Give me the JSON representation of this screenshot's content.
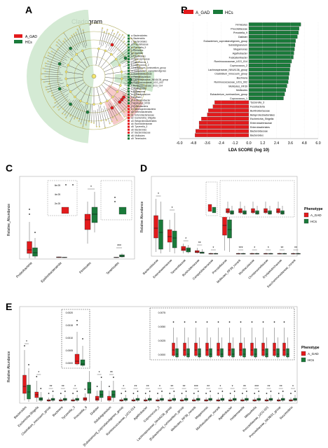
{
  "colors": {
    "a_gad": "#e31a1c",
    "hcs": "#1a7a3a",
    "hcs_bg": "#cfe8cf",
    "a_gad_bg": "#f6c9c9"
  },
  "panels": {
    "a": "A",
    "b": "B",
    "c": "C",
    "d": "D",
    "e": "E"
  },
  "cladogram": {
    "title": "Cladogram",
    "legend": [
      {
        "name": "A_GAD",
        "color": "#e31a1c"
      },
      {
        "name": "HCs",
        "color": "#1a7a3a"
      }
    ],
    "key_items": [
      {
        "label": "a: Bacteroidetes",
        "color": "#1a7a3a"
      },
      {
        "label": "b: Bacteroidia",
        "color": "#1a7a3a"
      },
      {
        "label": "c: Bacteroidales",
        "color": "#1a7a3a"
      },
      {
        "label": "d: Prevotellaceae",
        "color": "#1a7a3a"
      },
      {
        "label": "e: Prevotella_9",
        "color": "#1a7a3a"
      },
      {
        "label": "f: Firmicutes",
        "color": "#1a7a3a"
      },
      {
        "label": "g: Clostridia",
        "color": "#1a7a3a"
      },
      {
        "label": "h: Clostridiales",
        "color": "#1a7a3a"
      },
      {
        "label": "i: Lachnospiraceae",
        "color": "#1a7a3a"
      },
      {
        "label": "j: Coprococcus_1",
        "color": "#1a7a3a"
      },
      {
        "label": "k: Coprococcus_2",
        "color": "#1a7a3a"
      },
      {
        "label": "l: Eubacterium_ruminantium_group",
        "color": "#1a7a3a"
      },
      {
        "label": "m: Eubacterium_coprostanoligenes",
        "color": "#1a7a3a"
      },
      {
        "label": "n: Ruminococcaceae",
        "color": "#1a7a3a"
      },
      {
        "label": "o: Faecalibacterium",
        "color": "#1a7a3a"
      },
      {
        "label": "p: Lachnospiraceae_NK4A136_group",
        "color": "#1a7a3a"
      },
      {
        "label": "q: Ruminococcaceae_UCG_002",
        "color": "#1a7a3a"
      },
      {
        "label": "r: Ruminococcaceae_UCG_014",
        "color": "#1a7a3a"
      },
      {
        "label": "s: Agathobacter",
        "color": "#1a7a3a"
      },
      {
        "label": "t: Megamonas",
        "color": "#1a7a3a"
      },
      {
        "label": "u: Subdoligranulum",
        "color": "#1a7a3a"
      },
      {
        "label": "v: Dialister",
        "color": "#1a7a3a"
      },
      {
        "label": "w: Fusicatenibacter",
        "color": "#1a7a3a"
      },
      {
        "label": "x: Mollicutes_RF39",
        "color": "#1a7a3a"
      },
      {
        "label": "y: Proteobacteria",
        "color": "#e31a1c"
      },
      {
        "label": "z: Gammaproteobacteria",
        "color": "#e31a1c"
      },
      {
        "label": "a0: Enterobacteriales",
        "color": "#e31a1c"
      },
      {
        "label": "a1: Enterobacteriaceae",
        "color": "#e31a1c"
      },
      {
        "label": "a2: Escherichia_Shigella",
        "color": "#e31a1c"
      },
      {
        "label": "a3: Betaproteobacteriales",
        "color": "#e31a1c"
      },
      {
        "label": "a4: Burkholderiaceae",
        "color": "#e31a1c"
      },
      {
        "label": "a5: Tyzzerella_3",
        "color": "#e31a1c"
      },
      {
        "label": "a6: Bacteroides",
        "color": "#e31a1c"
      },
      {
        "label": "a7: Bacteroidaceae",
        "color": "#e31a1c"
      },
      {
        "label": "a8: Mollicutes",
        "color": "#1a7a3a"
      },
      {
        "label": "a9: Tenericutes",
        "color": "#1a7a3a"
      }
    ]
  },
  "chart_data": [
    {
      "type": "bar",
      "panel": "B",
      "xlabel": "LDA SCORE (log 10)",
      "xlim": [
        -6.0,
        6.0
      ],
      "xticks": [
        "-6.0",
        "-4.8",
        "-3.6",
        "-2.4",
        "-1.2",
        "0.0",
        "1.2",
        "2.4",
        "3.6",
        "4.8",
        "6.0"
      ],
      "legend": [
        {
          "name": "A_GAD",
          "color": "#e31a1c"
        },
        {
          "name": "HCs",
          "color": "#1a7a3a"
        }
      ],
      "categories": [
        "Firmicutes",
        "Prevotellaceae",
        "Prevotella_9",
        "Dialister",
        "Eubacterium_coprostanoligenes_group",
        "Subdoligranulum",
        "Megamonas",
        "Agathobacter",
        "Fusicatenibacter",
        "Ruminococcaceae_UCG_014",
        "Coprococcus_2",
        "Lachnospiraceae_NK4A136_group",
        "Clostridium_innocuum_group",
        "Buchnera",
        "Ruminococcaceae_UCG_002",
        "Mollicutes_RF39",
        "Mollicutes",
        "Eubacterium_ruminantium_group",
        "Coprococcus_1",
        "Tyzzerella_3",
        "Fusobacteria",
        "Burkholderiaceae",
        "Betaproteobacteriales",
        "Escherichia_Shigella",
        "Enterobacteriaceae",
        "Enterobacteriales",
        "Bacteroidaceae",
        "Bacteroides"
      ],
      "values": [
        4.5,
        4.35,
        4.3,
        4.2,
        4.05,
        4.0,
        3.95,
        3.9,
        3.85,
        3.7,
        3.6,
        3.55,
        3.5,
        3.45,
        3.4,
        3.3,
        3.2,
        3.1,
        3.0,
        -2.95,
        -3.1,
        -3.5,
        -3.6,
        -4.1,
        -4.3,
        -4.3,
        -4.6,
        -4.65
      ]
    },
    {
      "type": "box",
      "panel": "C",
      "ylabel": "Relative_Abundance",
      "categories": [
        "Proteobacteria",
        "Epsilonbacteraeota",
        "Firmicutes",
        "Tenericutes"
      ],
      "significance": [
        "",
        "",
        "*",
        "***"
      ],
      "series": [
        {
          "name": "A_GAD",
          "color": "#e31a1c"
        },
        {
          "name": "HCs",
          "color": "#1a7a3a"
        }
      ],
      "inset_labels": [
        "6e-05",
        "4e-05",
        "2e-05"
      ]
    },
    {
      "type": "box",
      "panel": "D",
      "ylabel": "Relative Abundance",
      "legend_title": "Phenotype",
      "legend": [
        {
          "name": "A_GAD",
          "color": "#e31a1c"
        },
        {
          "name": "HCs",
          "color": "#1a7a3a"
        }
      ],
      "categories": [
        "Bacteroidaceae",
        "Enterobacteriaceae",
        "Tannerellaceae",
        "Burkholderiaceae",
        "Campylobacteraceae",
        "Prevotellaceae",
        "Mollicutes_RF39_norank",
        "Muribaculaceae",
        "Christensenellaceae",
        "Erysipelotrichaceae",
        "Saccharimonadaceae_norank"
      ],
      "significance": [
        "*",
        "*",
        "*",
        "**",
        "*",
        "**",
        "***",
        "*",
        "*",
        "**",
        "**"
      ]
    },
    {
      "type": "box",
      "panel": "E",
      "ylabel": "Relative Abundance",
      "legend_title": "Phenotype",
      "legend": [
        {
          "name": "A_GAD",
          "color": "#e31a1c"
        },
        {
          "name": "HCs",
          "color": "#1a7a3a"
        }
      ],
      "categories": [
        "Bacteroides",
        "Escherichia-Shigella",
        "Clostridium_innocuum_group",
        "Buchnera",
        "Tyzzerella_3",
        "Prevotella_9",
        "Dialister",
        "Subdoligranulum",
        "[Eubacterium]_coprostanoligenes_group",
        "Ruminococcaceae_UCG-014",
        "Agathobacter",
        "Coprococcus_2",
        "Lachnospiraceae_NK4A136_group",
        "[Eubacterium]_ruminantium_group",
        "Mollicutes_RF39_norank",
        "Megamonas",
        "Muribaculaceae_norank",
        "Agathobacter",
        "Holdemanella",
        "Mitsuokella",
        "Prevotellaceae_UCG-001",
        "Prevotellaceae_NK3B31_group",
        "Succinivibrio"
      ],
      "significance": [
        "*",
        "*",
        "**",
        "**",
        "*",
        "***",
        "*",
        "**",
        "*",
        "**",
        "**",
        "*",
        "**",
        "**",
        "***",
        "**",
        "*",
        "*",
        "**",
        "***",
        "**",
        "**",
        "*"
      ],
      "inset_labels": [
        "0.0020",
        "0.0015",
        "0.0010",
        "0.0005",
        "0.0000"
      ],
      "inset2_labels": [
        "0.0075",
        "0.0050",
        "0.0025",
        "0.0000"
      ]
    }
  ]
}
